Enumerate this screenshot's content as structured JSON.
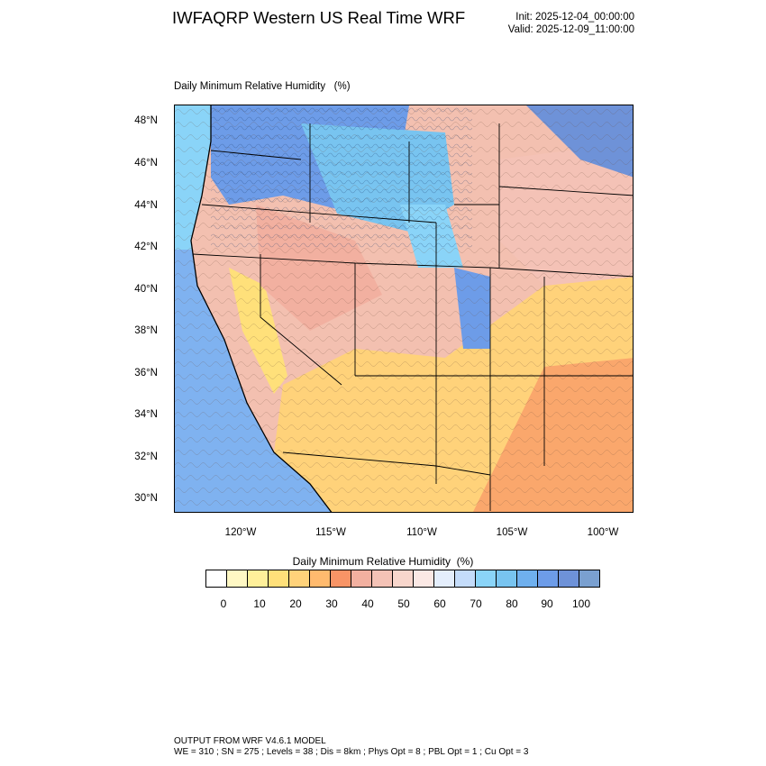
{
  "header": {
    "title": "IWFAQRP Western US Real Time WRF",
    "init": "Init: 2025-12-04_00:00:00",
    "valid": "Valid: 2025-12-09_11:00:00"
  },
  "plot": {
    "label": "Daily Minimum Relative Humidity   (%)",
    "lat_labels": [
      "48°N",
      "46°N",
      "44°N",
      "42°N",
      "40°N",
      "38°N",
      "36°N",
      "34°N",
      "32°N",
      "30°N"
    ],
    "lon_labels": [
      "120°W",
      "115°W",
      "110°W",
      "105°W",
      "100°W"
    ],
    "colors": {
      "ocean": "#7fb2f0",
      "land_dry": "#f6b08a",
      "land_moist": "#f3c0b0",
      "land_wet": "#6aa8e8",
      "state_lines": "#000000"
    }
  },
  "legend": {
    "title": "Daily Minimum Relative Humidity  (%)",
    "colors": [
      "#ffffff",
      "#fff8c4",
      "#fff09a",
      "#ffe07a",
      "#ffd27a",
      "#ffba6e",
      "#f89466",
      "#f2b0a0",
      "#f4c2b6",
      "#f8d6cc",
      "#fbe8e4",
      "#e4eefc",
      "#c4dcfa",
      "#8ad4f8",
      "#78c4f0",
      "#6fb0ee",
      "#6d9ce8",
      "#6e92d8",
      "#7aa0d0"
    ],
    "ticks": [
      "0",
      "10",
      "20",
      "30",
      "40",
      "50",
      "60",
      "70",
      "80",
      "90",
      "100"
    ]
  },
  "footer": {
    "line1": "OUTPUT FROM WRF V4.6.1 MODEL",
    "line2": "WE = 310 ; SN = 275 ; Levels = 38 ; Dis = 8km ; Phys Opt = 8 ; PBL Opt = 1 ; Cu Opt = 3"
  }
}
